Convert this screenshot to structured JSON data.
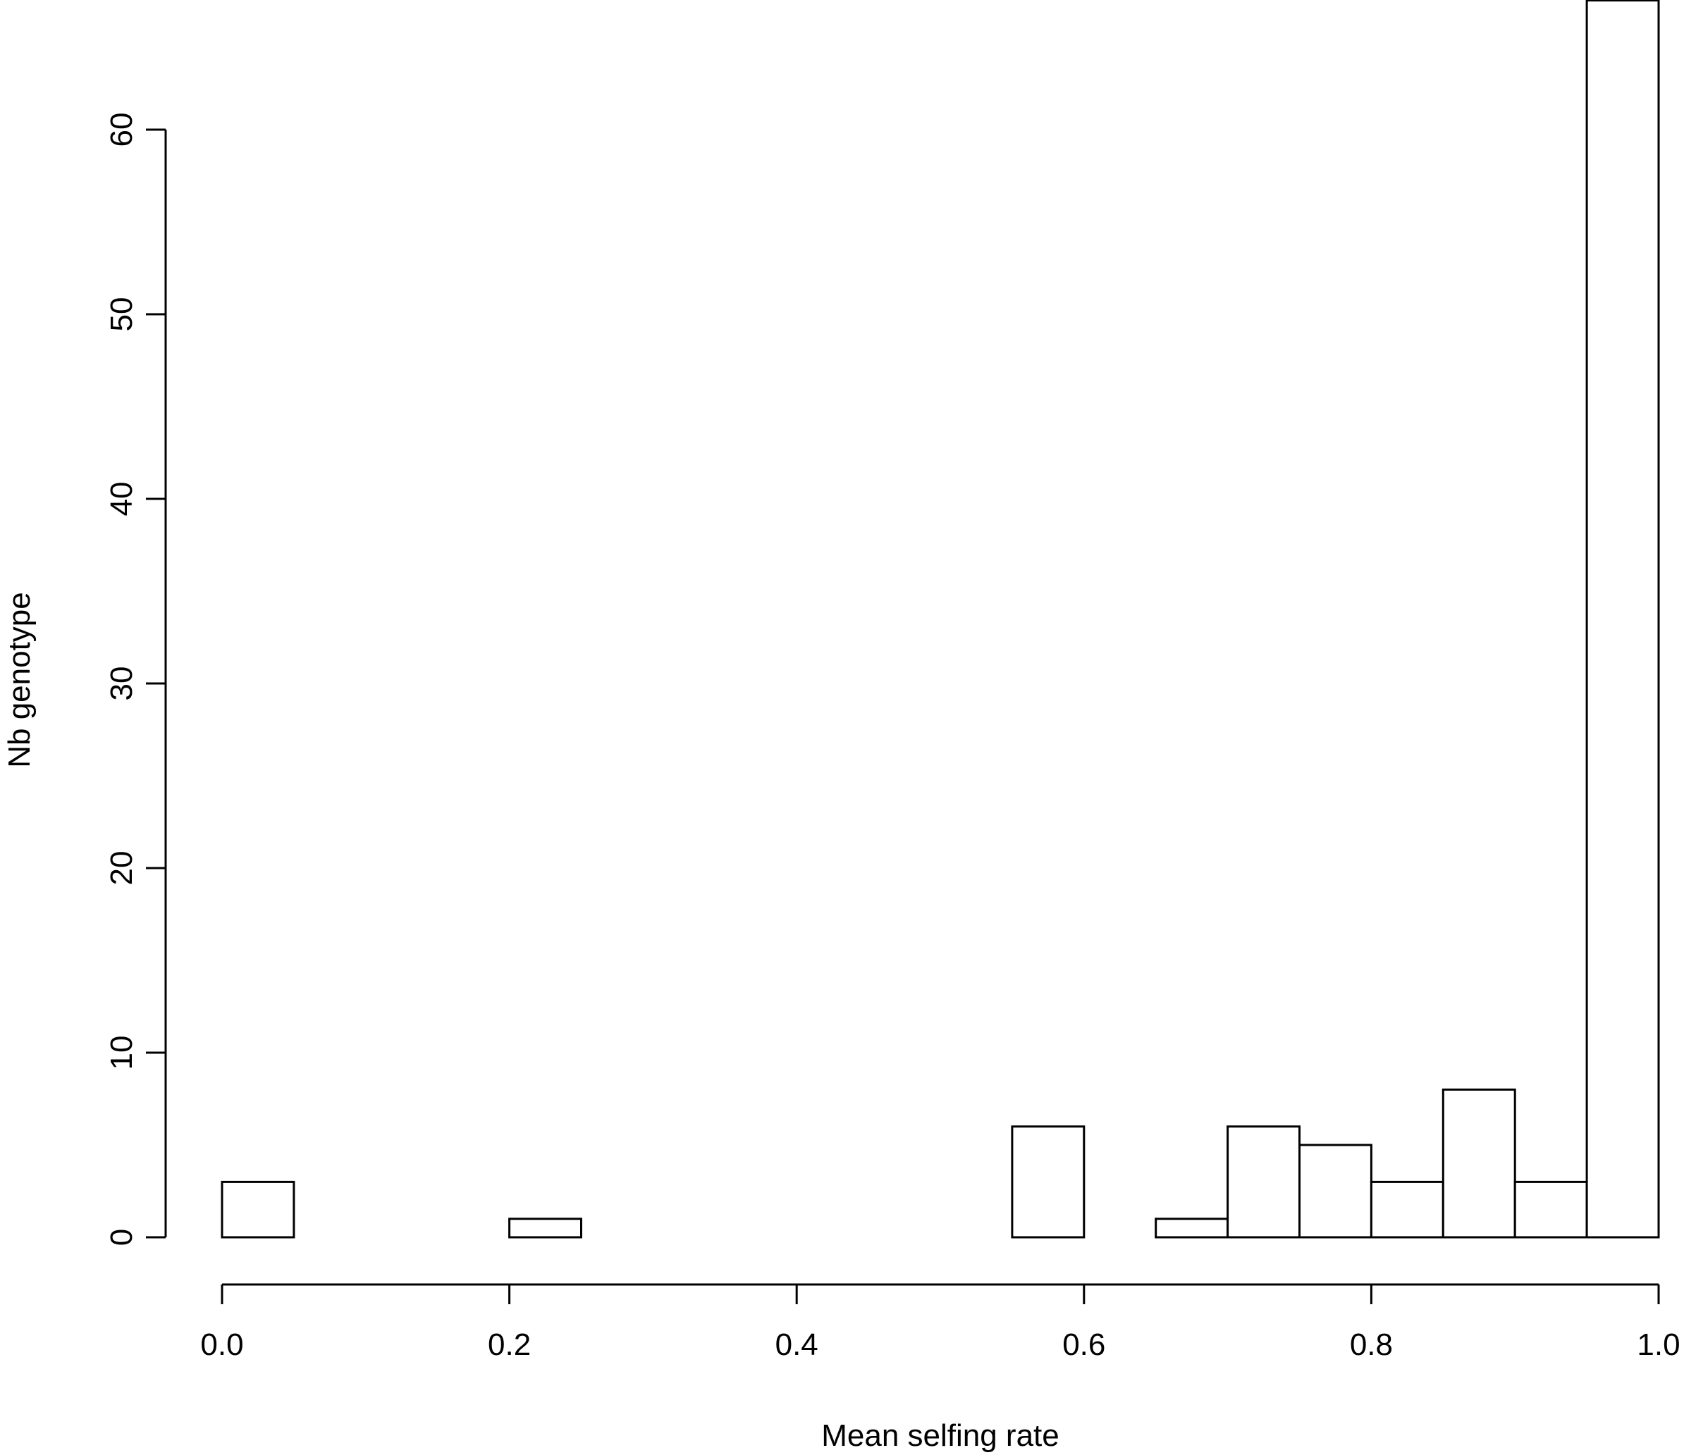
{
  "chart_data": {
    "type": "bar",
    "title": "",
    "xlabel": "Mean selfing rate",
    "ylabel": "Nb genotype",
    "bin_edges": [
      0.0,
      0.05,
      0.1,
      0.15,
      0.2,
      0.25,
      0.3,
      0.35,
      0.4,
      0.45,
      0.5,
      0.55,
      0.6,
      0.65,
      0.7,
      0.75,
      0.8,
      0.85,
      0.9,
      0.95,
      1.0
    ],
    "values": [
      3,
      0,
      0,
      0,
      1,
      0,
      0,
      0,
      0,
      0,
      0,
      6,
      0,
      1,
      6,
      5,
      3,
      8,
      3,
      67
    ],
    "xlim": [
      0.0,
      1.0
    ],
    "ylim": [
      0,
      60
    ],
    "x_ticks": [
      0.0,
      0.2,
      0.4,
      0.6,
      0.8,
      1.0
    ],
    "x_tick_labels": [
      "0.0",
      "0.2",
      "0.4",
      "0.6",
      "0.8",
      "1.0"
    ],
    "y_ticks": [
      0,
      10,
      20,
      30,
      40,
      50,
      60
    ],
    "y_tick_labels": [
      "0",
      "10",
      "20",
      "30",
      "40",
      "50",
      "60"
    ],
    "grid": false,
    "legend": "none",
    "bar_fill": "#ffffff",
    "bar_stroke": "#000000"
  }
}
